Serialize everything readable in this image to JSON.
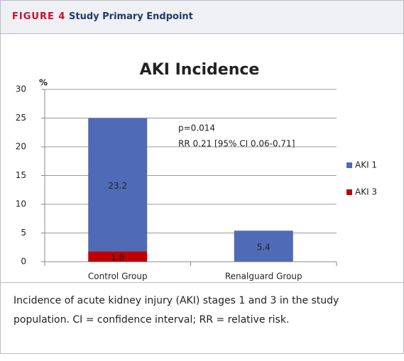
{
  "figure_label": "FIGURE 4",
  "figure_title": "Study Primary Endpoint",
  "caption": "Incidence of acute kidney injury (AKI) stages 1 and 3 in the study population. CI = confidence interval; RR = relative risk.",
  "chart_data": {
    "type": "stacked_bar",
    "title": "AKI Incidence",
    "y_label": "%",
    "categories": [
      "Control Group",
      "Renalguard Group"
    ],
    "series": [
      {
        "name": "AKI 1",
        "color": "#4f6bb5",
        "values": [
          23.2,
          5.4
        ]
      },
      {
        "name": "AKI 3",
        "color": "#c00000",
        "values": [
          1.8,
          null
        ]
      }
    ],
    "ylim": [
      0,
      30
    ],
    "yticks": [
      0,
      5,
      10,
      15,
      20,
      25,
      30
    ],
    "grid": true,
    "legend": "right",
    "annotations": [
      "p=0.014",
      "RR 0.21 [95% CI 0.06-0.71]"
    ]
  }
}
